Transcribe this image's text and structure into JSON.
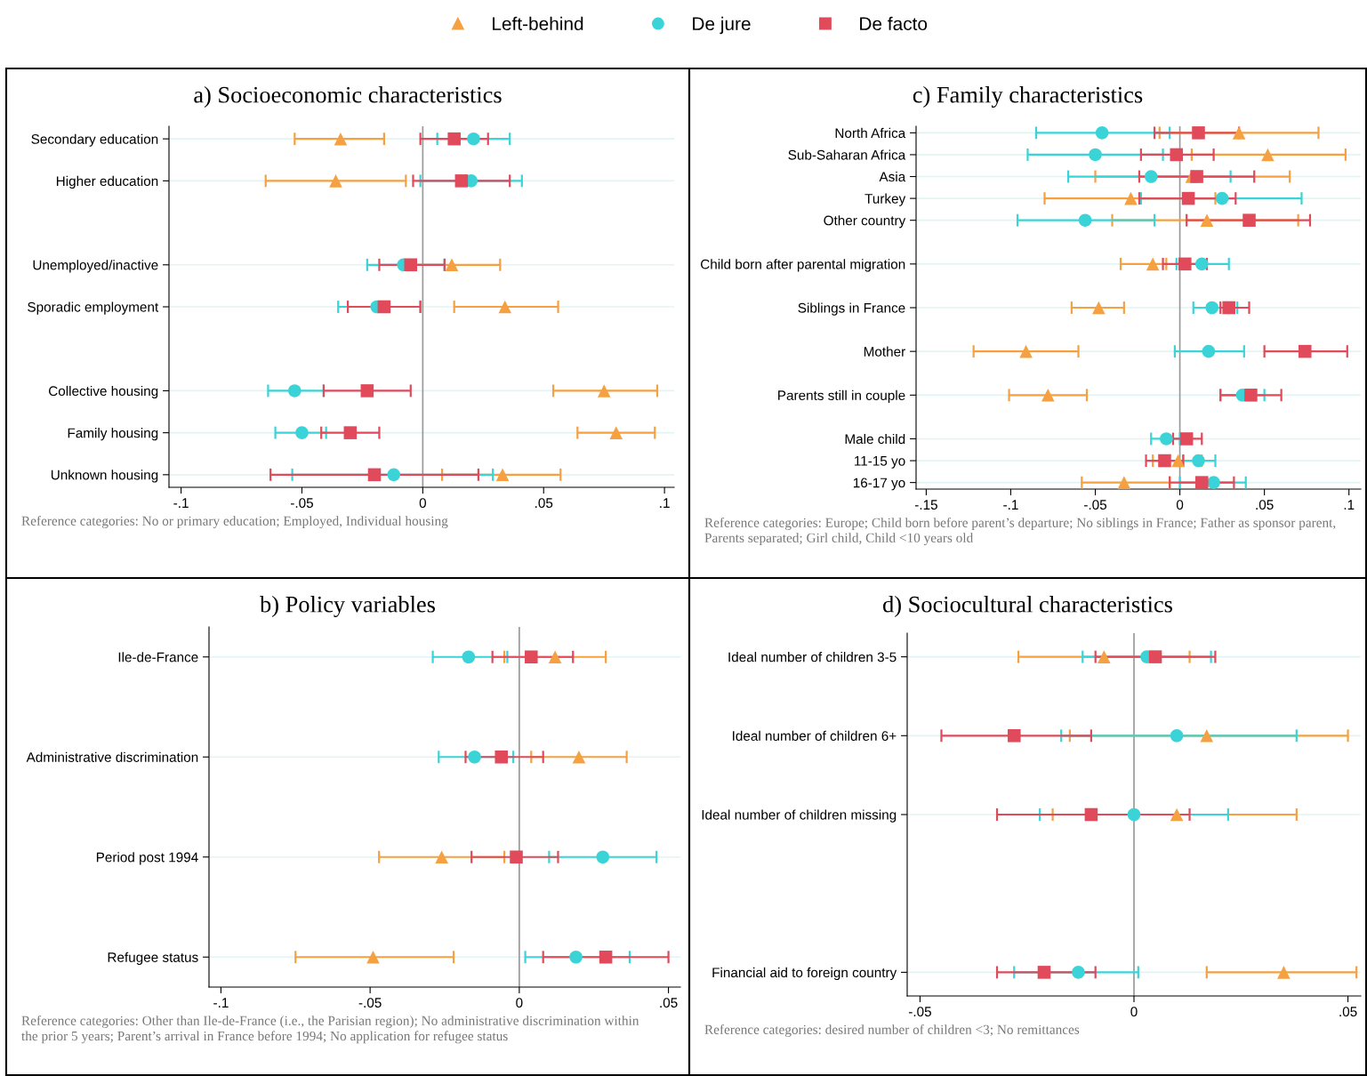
{
  "chart_data": [
    {
      "type": "scatter",
      "orientation": "horizontal",
      "title": "a) Socioeconomic characteristics",
      "legend": "top",
      "grid": "y",
      "categories": [
        "Secondary education",
        "Higher education",
        null,
        "Unemployed/inactive",
        "Sporadic employment",
        null,
        "Collective housing",
        "Family housing",
        "Unknown housing"
      ],
      "series": [
        {
          "name": "Left-behind",
          "color": "#f5a142",
          "marker": "triangle",
          "values": [
            -0.034,
            -0.036,
            null,
            0.012,
            0.034,
            null,
            0.075,
            0.08,
            0.033
          ],
          "errors": [
            [
              -0.053,
              -0.016
            ],
            [
              -0.065,
              -0.007
            ],
            null,
            [
              -0.008,
              0.032
            ],
            [
              0.013,
              0.056
            ],
            null,
            [
              0.054,
              0.097
            ],
            [
              0.064,
              0.096
            ],
            [
              0.008,
              0.057
            ]
          ]
        },
        {
          "name": "De jure",
          "color": "#3ad4d8",
          "marker": "circle",
          "values": [
            0.021,
            0.02,
            null,
            -0.008,
            -0.019,
            null,
            -0.053,
            -0.05,
            -0.012
          ],
          "errors": [
            [
              0.006,
              0.036
            ],
            [
              -0.001,
              0.041
            ],
            null,
            [
              -0.023,
              0.009
            ],
            [
              -0.035,
              -0.001
            ],
            null,
            [
              -0.064,
              -0.041
            ],
            [
              -0.061,
              -0.04
            ],
            [
              -0.054,
              0.029
            ]
          ]
        },
        {
          "name": "De facto",
          "color": "#e04a5a",
          "marker": "square",
          "values": [
            0.013,
            0.016,
            null,
            -0.005,
            -0.016,
            null,
            -0.023,
            -0.03,
            -0.02
          ],
          "errors": [
            [
              -0.001,
              0.027
            ],
            [
              -0.004,
              0.036
            ],
            null,
            [
              -0.018,
              0.009
            ],
            [
              -0.031,
              -0.001
            ],
            null,
            [
              -0.041,
              -0.005
            ],
            [
              -0.042,
              -0.018
            ],
            [
              -0.063,
              0.023
            ]
          ]
        }
      ],
      "xlim": [
        -0.105,
        0.104
      ],
      "xticks": [
        {
          "value": -0.1,
          "label": "-.1"
        },
        {
          "value": -0.05,
          "label": "-.05"
        },
        0,
        {
          "value": 0.05,
          "label": ".05"
        },
        {
          "value": 0.1,
          "label": ".1"
        }
      ],
      "ref_lines": [
        {
          "axis": "x",
          "value": 0,
          "color": "#999999"
        }
      ],
      "annotations": [
        "Reference categories: No or primary education; Employed, Individual housing"
      ]
    },
    {
      "type": "scatter",
      "orientation": "horizontal",
      "title": "c) Family characteristics",
      "grid": "y",
      "categories": [
        "North Africa",
        "Sub-Saharan Africa",
        "Asia",
        "Turkey",
        "Other country",
        null,
        "Child born after parental migration",
        null,
        "Siblings in France",
        null,
        "Mother",
        null,
        "Parents still in couple",
        null,
        "Male child",
        "11-15 yo",
        "16-17 yo"
      ],
      "series": [
        {
          "color": "#f5a142",
          "marker": "triangle",
          "values": [
            0.035,
            0.052,
            0.007,
            -0.029,
            0.016,
            null,
            -0.016,
            null,
            -0.048,
            null,
            -0.091,
            null,
            -0.078,
            null,
            null,
            -0.001,
            -0.033
          ],
          "errors": [
            [
              -0.012,
              0.082
            ],
            [
              0.007,
              0.098
            ],
            [
              -0.05,
              0.065
            ],
            [
              -0.08,
              0.021
            ],
            [
              -0.04,
              0.07
            ],
            null,
            [
              -0.035,
              -0.008
            ],
            null,
            [
              -0.064,
              -0.033
            ],
            null,
            [
              -0.122,
              -0.06
            ],
            null,
            [
              -0.101,
              -0.055
            ],
            null,
            null,
            [
              -0.016,
              0.013
            ],
            [
              -0.058,
              -0.006
            ]
          ]
        },
        {
          "color": "#3ad4d8",
          "marker": "circle",
          "values": [
            -0.046,
            -0.05,
            -0.017,
            0.025,
            -0.056,
            null,
            0.013,
            null,
            0.019,
            null,
            0.017,
            null,
            0.037,
            null,
            -0.008,
            0.011,
            0.02
          ],
          "errors": [
            [
              -0.085,
              -0.006
            ],
            [
              -0.09,
              -0.01
            ],
            [
              -0.066,
              0.03
            ],
            [
              -0.023,
              0.072
            ],
            [
              -0.096,
              -0.015
            ],
            null,
            [
              -0.002,
              0.029
            ],
            null,
            [
              0.008,
              0.034
            ],
            null,
            [
              -0.003,
              0.038
            ],
            null,
            [
              0.024,
              0.05
            ],
            null,
            [
              -0.017,
              0.0
            ],
            [
              0.002,
              0.021
            ],
            [
              0.0,
              0.039
            ]
          ]
        },
        {
          "color": "#e04a5a",
          "marker": "square",
          "values": [
            0.011,
            -0.002,
            0.01,
            0.005,
            0.041,
            null,
            0.003,
            null,
            0.029,
            null,
            0.074,
            null,
            0.042,
            null,
            0.004,
            -0.009,
            0.013
          ],
          "errors": [
            [
              -0.015,
              0.035
            ],
            [
              -0.023,
              0.02
            ],
            [
              -0.024,
              0.044
            ],
            [
              -0.024,
              0.033
            ],
            [
              0.004,
              0.077
            ],
            null,
            [
              -0.01,
              0.016
            ],
            null,
            [
              0.024,
              0.041
            ],
            null,
            [
              0.05,
              0.099
            ],
            null,
            [
              0.024,
              0.06
            ],
            null,
            [
              -0.004,
              0.013
            ],
            [
              -0.02,
              0.002
            ],
            [
              -0.006,
              0.032
            ]
          ]
        }
      ],
      "xlim": [
        -0.156,
        0.107
      ],
      "xticks": [
        {
          "value": -0.15,
          "label": "-.15"
        },
        {
          "value": -0.1,
          "label": "-.1"
        },
        {
          "value": -0.05,
          "label": "-.05"
        },
        0,
        {
          "value": 0.05,
          "label": ".05"
        },
        {
          "value": 0.1,
          "label": ".1"
        }
      ],
      "ref_lines": [
        {
          "axis": "x",
          "value": 0,
          "color": "#999999"
        }
      ],
      "annotations": [
        "Reference categories: Europe; Child born before parent’s departure; No siblings in France; Father as sponsor parent,\nParents separated; Girl child, Child <10 years old"
      ]
    },
    {
      "type": "scatter",
      "orientation": "horizontal",
      "title": "b) Policy variables",
      "grid": "y",
      "categories": [
        "Ile-de-France",
        "Administrative discrimination",
        "Period post 1994",
        "Refugee status"
      ],
      "series": [
        {
          "color": "#f5a142",
          "marker": "triangle",
          "values": [
            0.012,
            0.02,
            -0.026,
            -0.049
          ],
          "errors": [
            [
              -0.005,
              0.029
            ],
            [
              0.004,
              0.036
            ],
            [
              -0.047,
              -0.005
            ],
            [
              -0.075,
              -0.022
            ]
          ]
        },
        {
          "color": "#3ad4d8",
          "marker": "circle",
          "values": [
            -0.017,
            -0.015,
            0.028,
            0.019
          ],
          "errors": [
            [
              -0.029,
              -0.004
            ],
            [
              -0.027,
              -0.002
            ],
            [
              0.01,
              0.046
            ],
            [
              0.002,
              0.037
            ]
          ]
        },
        {
          "color": "#e04a5a",
          "marker": "square",
          "values": [
            0.004,
            -0.006,
            -0.001,
            0.029
          ],
          "errors": [
            [
              -0.009,
              0.018
            ],
            [
              -0.018,
              0.008
            ],
            [
              -0.016,
              0.013
            ],
            [
              0.008,
              0.05
            ]
          ]
        }
      ],
      "xlim": [
        -0.104,
        0.054
      ],
      "xticks": [
        {
          "value": -0.1,
          "label": "-.1"
        },
        {
          "value": -0.05,
          "label": "-.05"
        },
        0,
        {
          "value": 0.05,
          "label": ".05"
        }
      ],
      "ref_lines": [
        {
          "axis": "x",
          "value": 0,
          "color": "#999999"
        }
      ],
      "annotations": [
        "Reference categories: Other than Ile-de-France (i.e., the Parisian region); No administrative discrimination within\nthe prior 5 years; Parent’s arrival in France before 1994; No application for refugee status"
      ]
    },
    {
      "type": "scatter",
      "orientation": "horizontal",
      "title": "d) Sociocultural characteristics",
      "grid": "y",
      "categories": [
        "Ideal number of children 3-5",
        "Ideal number of children 6+",
        "Ideal number of children missing",
        null,
        "Financial aid to foreign country"
      ],
      "series": [
        {
          "color": "#f5a142",
          "marker": "triangle",
          "values": [
            -0.007,
            0.017,
            0.01,
            null,
            0.035
          ],
          "errors": [
            [
              -0.027,
              0.013
            ],
            [
              -0.015,
              0.05
            ],
            [
              -0.019,
              0.038
            ],
            null,
            [
              0.017,
              0.052
            ]
          ]
        },
        {
          "color": "#3ad4d8",
          "marker": "circle",
          "values": [
            0.003,
            0.01,
            0.0,
            null,
            -0.013
          ],
          "errors": [
            [
              -0.012,
              0.018
            ],
            [
              -0.017,
              0.038
            ],
            [
              -0.022,
              0.022
            ],
            null,
            [
              -0.028,
              0.001
            ]
          ]
        },
        {
          "color": "#e04a5a",
          "marker": "square",
          "values": [
            0.005,
            -0.028,
            -0.01,
            null,
            -0.021
          ],
          "errors": [
            [
              -0.009,
              0.019
            ],
            [
              -0.045,
              -0.01
            ],
            [
              -0.032,
              0.013
            ],
            null,
            [
              -0.032,
              -0.009
            ]
          ]
        }
      ],
      "xlim": [
        -0.053,
        0.053
      ],
      "xticks": [
        {
          "value": -0.05,
          "label": "-.05"
        },
        0,
        {
          "value": 0.05,
          "label": ".05"
        }
      ],
      "ref_lines": [
        {
          "axis": "x",
          "value": 0,
          "color": "#999999"
        }
      ],
      "annotations": [
        "Reference categories: desired number of children <3; No remittances"
      ]
    }
  ]
}
